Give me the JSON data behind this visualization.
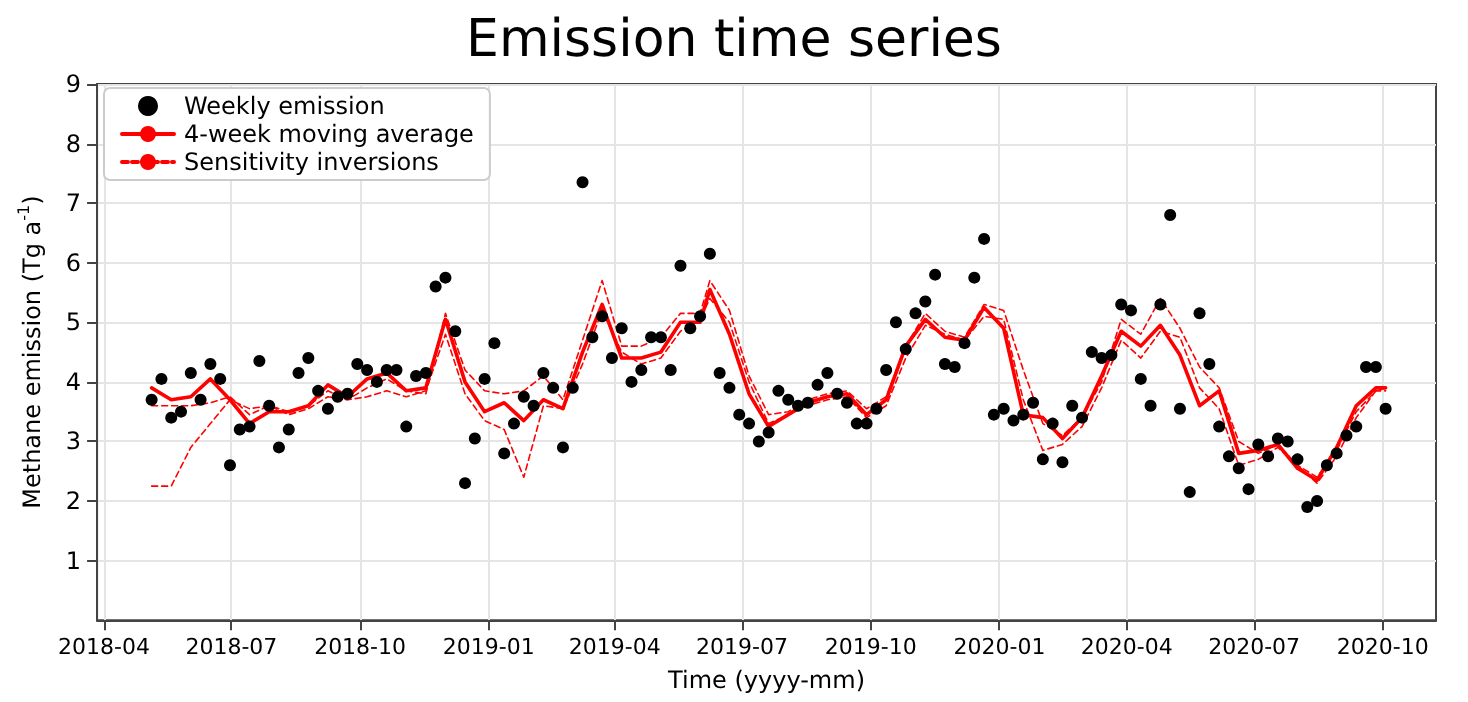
{
  "chart_data": {
    "type": "line",
    "title": "Emission time series",
    "xlabel": "Time (yyyy-mm)",
    "ylabel": "Methane emission (Tg a$^{-1}$)",
    "xlim": [
      "2018-03-27",
      "2020-11-08"
    ],
    "xticks": [
      "2018-04",
      "2018-07",
      "2018-10",
      "2019-01",
      "2019-04",
      "2019-07",
      "2019-10",
      "2020-01",
      "2020-04",
      "2020-07",
      "2020-10"
    ],
    "ylim": [
      0,
      9
    ],
    "yticks": [
      1,
      2,
      3,
      4,
      5,
      6,
      7,
      8,
      9
    ],
    "grid": true,
    "legend": "top left",
    "series": [
      {
        "name": "Weekly emission",
        "type": "scatter",
        "marker": "circle",
        "color": "#000000",
        "x": [
          "2018-05-05",
          "2018-05-12",
          "2018-05-19",
          "2018-05-26",
          "2018-06-02",
          "2018-06-09",
          "2018-06-16",
          "2018-06-23",
          "2018-06-30",
          "2018-07-07",
          "2018-07-14",
          "2018-07-21",
          "2018-07-28",
          "2018-08-04",
          "2018-08-11",
          "2018-08-18",
          "2018-08-25",
          "2018-09-01",
          "2018-09-08",
          "2018-09-15",
          "2018-09-22",
          "2018-09-29",
          "2018-10-06",
          "2018-10-13",
          "2018-10-20",
          "2018-10-27",
          "2018-11-03",
          "2018-11-10",
          "2018-11-17",
          "2018-11-24",
          "2018-12-01",
          "2018-12-08",
          "2018-12-15",
          "2018-12-22",
          "2018-12-29",
          "2019-01-05",
          "2019-01-12",
          "2019-01-19",
          "2019-01-26",
          "2019-02-02",
          "2019-02-09",
          "2019-02-16",
          "2019-02-23",
          "2019-03-02",
          "2019-03-09",
          "2019-03-16",
          "2019-03-23",
          "2019-03-30",
          "2019-04-06",
          "2019-04-13",
          "2019-04-20",
          "2019-04-27",
          "2019-05-04",
          "2019-05-11",
          "2019-05-18",
          "2019-05-25",
          "2019-06-01",
          "2019-06-08",
          "2019-06-15",
          "2019-06-22",
          "2019-06-29",
          "2019-07-06",
          "2019-07-13",
          "2019-07-20",
          "2019-07-27",
          "2019-08-03",
          "2019-08-10",
          "2019-08-17",
          "2019-08-24",
          "2019-08-31",
          "2019-09-07",
          "2019-09-14",
          "2019-09-21",
          "2019-09-28",
          "2019-10-05",
          "2019-10-12",
          "2019-10-19",
          "2019-10-26",
          "2019-11-02",
          "2019-11-09",
          "2019-11-16",
          "2019-11-23",
          "2019-11-30",
          "2019-12-07",
          "2019-12-14",
          "2019-12-21",
          "2019-12-28",
          "2020-01-04",
          "2020-01-11",
          "2020-01-18",
          "2020-01-25",
          "2020-02-01",
          "2020-02-08",
          "2020-02-15",
          "2020-02-22",
          "2020-02-29",
          "2020-03-07",
          "2020-03-14",
          "2020-03-21",
          "2020-03-28",
          "2020-04-04",
          "2020-04-11",
          "2020-04-18",
          "2020-04-25",
          "2020-05-02",
          "2020-05-09",
          "2020-05-16",
          "2020-05-23",
          "2020-05-30",
          "2020-06-06",
          "2020-06-13",
          "2020-06-20",
          "2020-06-27",
          "2020-07-04",
          "2020-07-11",
          "2020-07-18",
          "2020-07-25",
          "2020-08-01",
          "2020-08-08",
          "2020-08-15",
          "2020-08-22",
          "2020-08-29",
          "2020-09-05",
          "2020-09-12",
          "2020-09-19",
          "2020-09-26",
          "2020-10-03"
        ],
        "values": [
          3.7,
          4.05,
          3.4,
          3.5,
          4.15,
          3.7,
          4.3,
          4.05,
          2.6,
          3.2,
          3.25,
          4.35,
          3.6,
          2.9,
          3.2,
          4.15,
          4.4,
          3.85,
          3.55,
          3.75,
          3.8,
          4.3,
          4.2,
          4.0,
          4.2,
          4.2,
          3.25,
          4.1,
          4.15,
          5.6,
          5.75,
          4.85,
          2.3,
          3.05,
          4.05,
          4.65,
          2.8,
          3.3,
          3.75,
          3.6,
          4.15,
          3.9,
          2.9,
          3.9,
          7.35,
          4.75,
          5.1,
          4.4,
          4.9,
          4.0,
          4.2,
          4.75,
          4.75,
          4.2,
          5.95,
          4.9,
          5.1,
          6.15,
          4.15,
          3.9,
          3.45,
          3.3,
          3.0,
          3.15,
          3.85,
          3.7,
          3.6,
          3.65,
          3.95,
          4.15,
          3.8,
          3.65,
          3.3,
          3.3,
          3.55,
          4.2,
          5.0,
          4.55,
          5.15,
          5.35,
          5.8,
          4.3,
          4.25,
          4.65,
          5.75,
          6.4,
          3.45,
          3.55,
          3.35,
          3.45,
          3.65,
          2.7,
          3.3,
          2.65,
          3.6,
          3.4,
          4.5,
          4.4,
          4.45,
          5.3,
          5.2,
          4.05,
          3.6,
          5.3,
          6.8,
          3.55,
          2.15,
          5.15,
          4.3,
          3.25,
          2.75,
          2.55,
          2.2,
          2.95,
          2.75,
          3.05,
          3.0,
          2.7,
          1.9,
          2.0,
          2.6,
          2.8,
          3.1,
          3.25,
          4.25,
          4.25,
          3.55
        ]
      },
      {
        "name": "4-week moving average",
        "marker": "none",
        "line_style": "solid",
        "color": "#ff0000",
        "x": [
          "2018-05-05",
          "2018-05-19",
          "2018-06-02",
          "2018-06-16",
          "2018-06-30",
          "2018-07-14",
          "2018-07-28",
          "2018-08-11",
          "2018-08-25",
          "2018-09-08",
          "2018-09-22",
          "2018-10-06",
          "2018-10-20",
          "2018-11-03",
          "2018-11-17",
          "2018-12-01",
          "2018-12-15",
          "2018-12-29",
          "2019-01-12",
          "2019-01-26",
          "2019-02-09",
          "2019-02-23",
          "2019-03-09",
          "2019-03-23",
          "2019-04-06",
          "2019-04-20",
          "2019-05-04",
          "2019-05-18",
          "2019-06-01",
          "2019-06-08",
          "2019-06-22",
          "2019-07-06",
          "2019-07-20",
          "2019-08-03",
          "2019-08-17",
          "2019-08-31",
          "2019-09-14",
          "2019-09-28",
          "2019-10-12",
          "2019-10-26",
          "2019-11-09",
          "2019-11-23",
          "2019-12-07",
          "2019-12-21",
          "2020-01-04",
          "2020-01-18",
          "2020-02-01",
          "2020-02-15",
          "2020-02-29",
          "2020-03-14",
          "2020-03-28",
          "2020-04-11",
          "2020-04-25",
          "2020-05-09",
          "2020-05-23",
          "2020-06-06",
          "2020-06-20",
          "2020-07-04",
          "2020-07-18",
          "2020-08-01",
          "2020-08-15",
          "2020-08-29",
          "2020-09-12",
          "2020-09-26",
          "2020-10-03"
        ],
        "values": [
          3.9,
          3.7,
          3.75,
          4.05,
          3.7,
          3.3,
          3.5,
          3.5,
          3.6,
          3.95,
          3.75,
          4.05,
          4.15,
          3.85,
          3.9,
          5.05,
          4.0,
          3.5,
          3.65,
          3.35,
          3.7,
          3.55,
          4.5,
          5.3,
          4.4,
          4.4,
          4.5,
          5.0,
          5.0,
          5.55,
          4.8,
          3.8,
          3.25,
          3.45,
          3.65,
          3.75,
          3.8,
          3.45,
          3.7,
          4.6,
          5.05,
          4.75,
          4.7,
          5.25,
          4.9,
          3.45,
          3.4,
          3.05,
          3.4,
          4.1,
          4.85,
          4.6,
          4.95,
          4.45,
          3.6,
          3.85,
          2.8,
          2.85,
          2.95,
          2.55,
          2.35,
          2.9,
          3.6,
          3.9,
          3.9
        ]
      },
      {
        "name": "Sensitivity inversions",
        "marker": "none",
        "line_style": "dashed",
        "color": "#ff0000",
        "x": [
          "2018-05-05",
          "2018-05-19",
          "2018-06-02",
          "2018-06-16",
          "2018-06-30",
          "2018-07-14",
          "2018-07-28",
          "2018-08-11",
          "2018-08-25",
          "2018-09-08",
          "2018-09-22",
          "2018-10-06",
          "2018-10-20",
          "2018-11-03",
          "2018-11-17",
          "2018-12-01",
          "2018-12-15",
          "2018-12-29",
          "2019-01-12",
          "2019-01-26",
          "2019-02-09",
          "2019-02-23",
          "2019-03-09",
          "2019-03-23",
          "2019-04-06",
          "2019-04-20",
          "2019-05-04",
          "2019-05-18",
          "2019-06-01",
          "2019-06-08",
          "2019-06-22",
          "2019-07-06",
          "2019-07-20",
          "2019-08-03",
          "2019-08-17",
          "2019-08-31",
          "2019-09-14",
          "2019-09-28",
          "2019-10-12",
          "2019-10-26",
          "2019-11-09",
          "2019-11-23",
          "2019-12-07",
          "2019-12-21",
          "2020-01-04",
          "2020-01-18",
          "2020-02-01",
          "2020-02-15",
          "2020-02-29",
          "2020-03-14",
          "2020-03-28",
          "2020-04-11",
          "2020-04-25",
          "2020-05-09",
          "2020-05-23",
          "2020-06-06",
          "2020-06-20",
          "2020-07-04",
          "2020-07-18",
          "2020-08-01",
          "2020-08-15",
          "2020-08-29",
          "2020-09-12",
          "2020-09-26",
          "2020-10-03"
        ],
        "values": [
          2.25,
          2.25,
          2.9,
          3.3,
          3.7,
          3.55,
          3.6,
          3.5,
          3.6,
          3.85,
          3.7,
          3.9,
          4.05,
          3.85,
          3.8,
          5.15,
          4.2,
          3.85,
          3.8,
          3.85,
          4.1,
          3.7,
          4.7,
          5.7,
          4.6,
          4.6,
          4.75,
          5.15,
          5.15,
          5.7,
          5.2,
          4.1,
          3.45,
          3.5,
          3.7,
          3.8,
          3.85,
          3.55,
          3.75,
          4.6,
          5.15,
          4.85,
          4.75,
          5.3,
          5.2,
          4.2,
          3.3,
          3.1,
          3.4,
          4.0,
          5.05,
          4.8,
          5.4,
          4.9,
          4.25,
          3.9,
          3.0,
          2.8,
          2.95,
          2.6,
          2.4,
          2.85,
          3.5,
          3.85,
          3.85
        ]
      },
      {
        "marker": "none",
        "line_style": "dashed",
        "color": "#ff0000",
        "x": [
          "2018-05-05",
          "2018-05-19",
          "2018-06-02",
          "2018-06-16",
          "2018-06-30",
          "2018-07-14",
          "2018-07-28",
          "2018-08-11",
          "2018-08-25",
          "2018-09-08",
          "2018-09-22",
          "2018-10-06",
          "2018-10-20",
          "2018-11-03",
          "2018-11-17",
          "2018-12-01",
          "2018-12-15",
          "2018-12-29",
          "2019-01-12",
          "2019-01-26",
          "2019-02-09",
          "2019-02-23",
          "2019-03-09",
          "2019-03-23",
          "2019-04-06",
          "2019-04-20",
          "2019-05-04",
          "2019-05-18",
          "2019-06-01",
          "2019-06-08",
          "2019-06-22",
          "2019-07-06",
          "2019-07-20",
          "2019-08-03",
          "2019-08-17",
          "2019-08-31",
          "2019-09-14",
          "2019-09-28",
          "2019-10-12",
          "2019-10-26",
          "2019-11-09",
          "2019-11-23",
          "2019-12-07",
          "2019-12-21",
          "2020-01-04",
          "2020-01-18",
          "2020-02-01",
          "2020-02-15",
          "2020-02-29",
          "2020-03-14",
          "2020-03-28",
          "2020-04-11",
          "2020-04-25",
          "2020-05-09",
          "2020-05-23",
          "2020-06-06",
          "2020-06-20",
          "2020-07-04",
          "2020-07-18",
          "2020-08-01",
          "2020-08-15",
          "2020-08-29",
          "2020-09-12",
          "2020-09-26",
          "2020-10-03"
        ],
        "values": [
          3.6,
          3.6,
          3.6,
          3.65,
          3.75,
          3.45,
          3.6,
          3.45,
          3.55,
          3.75,
          3.7,
          3.75,
          3.85,
          3.75,
          3.85,
          4.8,
          3.8,
          3.35,
          3.2,
          2.4,
          3.6,
          3.55,
          4.3,
          5.2,
          4.5,
          4.3,
          4.4,
          4.85,
          5.05,
          5.4,
          5.0,
          4.0,
          3.3,
          3.45,
          3.6,
          3.7,
          3.75,
          3.4,
          3.6,
          4.4,
          4.95,
          4.8,
          4.7,
          5.1,
          5.05,
          3.7,
          2.85,
          2.95,
          3.25,
          3.9,
          4.7,
          4.4,
          4.85,
          4.75,
          3.9,
          3.55,
          2.6,
          2.7,
          2.9,
          2.6,
          2.3,
          2.75,
          3.4,
          3.85,
          3.9
        ]
      }
    ]
  }
}
